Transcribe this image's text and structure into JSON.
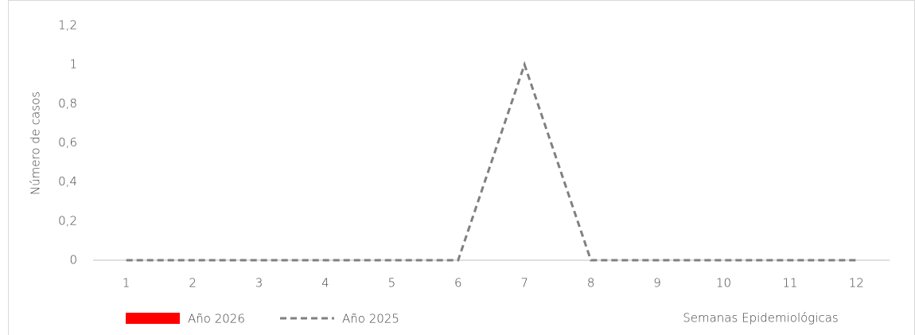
{
  "chart_data": {
    "type": "combo",
    "y_label": "Número de casos",
    "x_label": "Semanas Epidemiológicas",
    "categories": [
      "1",
      "2",
      "3",
      "4",
      "5",
      "6",
      "7",
      "8",
      "9",
      "10",
      "11",
      "12"
    ],
    "series": [
      {
        "name": "Año 2026",
        "type": "bar",
        "color": "#ff0000",
        "values": [
          0,
          0,
          0,
          0,
          0,
          0,
          0,
          0,
          0,
          0,
          0,
          0
        ]
      },
      {
        "name": "Año 2025",
        "type": "line",
        "dashed": true,
        "color": "#808080",
        "values": [
          0,
          0,
          0,
          0,
          0,
          0,
          1,
          0,
          0,
          0,
          0,
          0
        ]
      }
    ],
    "ylim": [
      0,
      1.2
    ],
    "yticks": [
      0,
      {
        "value": 0.2,
        "label": "0,2"
      },
      {
        "value": 0.4,
        "label": "0,4"
      },
      {
        "value": 0.6,
        "label": "0,6"
      },
      {
        "value": 0.8,
        "label": "0,8"
      },
      1,
      {
        "value": 1.2,
        "label": "1,2"
      }
    ],
    "grid": false
  }
}
